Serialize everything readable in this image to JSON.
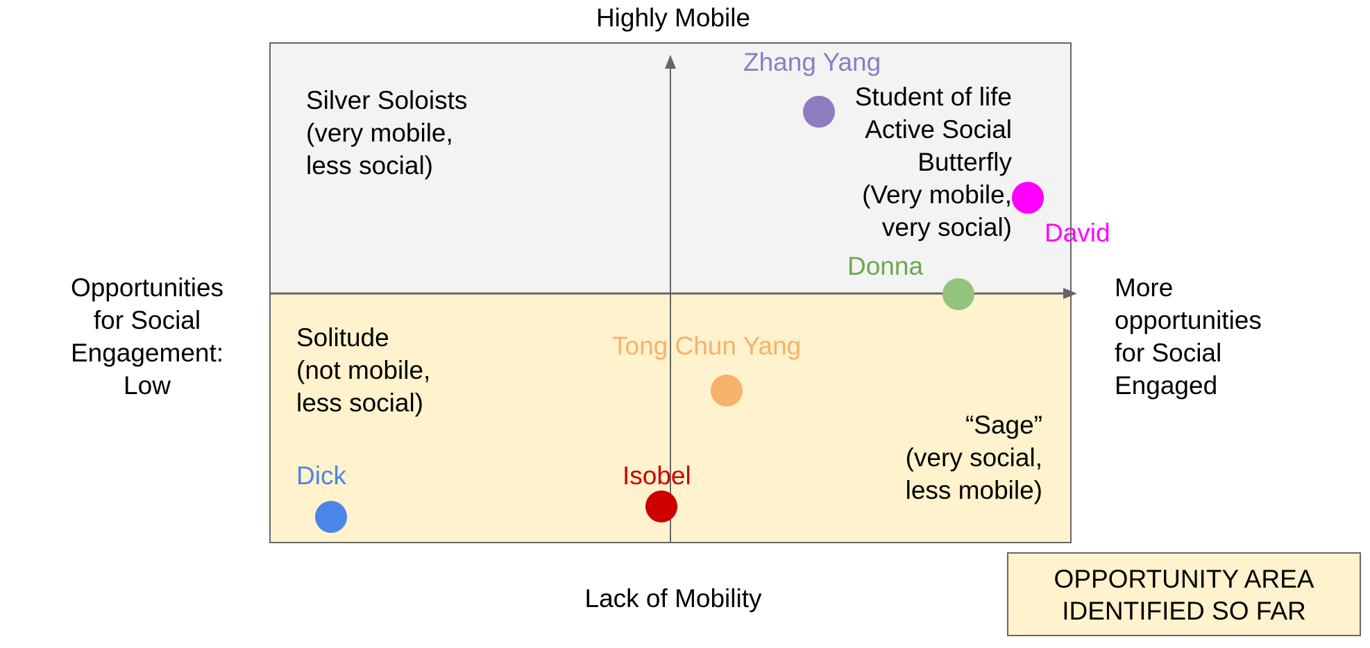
{
  "axes": {
    "top_label": "Highly Mobile",
    "bottom_label": "Lack of Mobility",
    "left_label": [
      "Opportunities",
      "for Social",
      "Engagement:",
      "Low"
    ],
    "right_label": [
      "More",
      "opportunities",
      "for Social",
      "Engaged"
    ]
  },
  "quadrants": {
    "top_left": [
      "Silver Soloists",
      "(very mobile,",
      "less social)"
    ],
    "top_right": [
      "Student of life",
      "Active Social",
      "Butterfly",
      "(Very mobile,",
      "very social)"
    ],
    "bottom_left": [
      "Solitude",
      "(not mobile,",
      "less social)"
    ],
    "bottom_right": [
      "“Sage”",
      "(very social,",
      "less mobile)"
    ]
  },
  "colors": {
    "top_fill": "#f3f3f3",
    "bottom_fill": "#fff2cc",
    "axis": "#666666"
  },
  "people": [
    {
      "name": "Zhang Yang",
      "color": "#8e7cc3"
    },
    {
      "name": "David",
      "color": "#ff00ff"
    },
    {
      "name": "Donna",
      "color": "#6aa84f"
    },
    {
      "name": "Tong Chun Yang",
      "color": "#f6b26b"
    },
    {
      "name": "Dick",
      "color": "#4a86e8"
    },
    {
      "name": "Isobel",
      "color": "#cc0000"
    }
  ],
  "legend": {
    "lines": [
      "OPPORTUNITY AREA",
      "IDENTIFIED SO FAR"
    ]
  }
}
